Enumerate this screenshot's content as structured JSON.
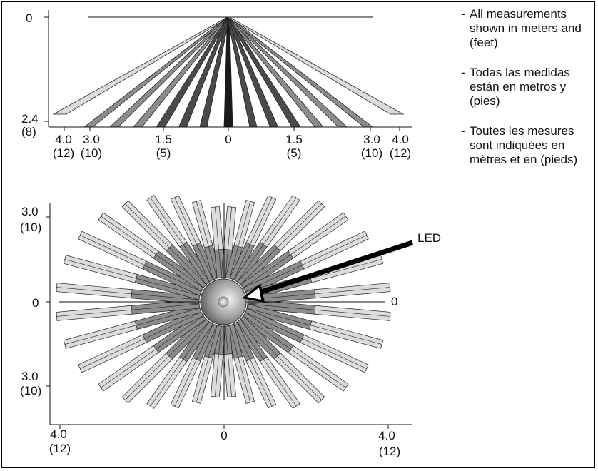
{
  "top_view": {
    "y_ticks": [
      {
        "value": "0"
      },
      {
        "value": "2.4",
        "sub": "(8)"
      }
    ],
    "x_ticks": [
      {
        "value": "4.0",
        "sub": "(12)"
      },
      {
        "value": "3.0",
        "sub": "(10)"
      },
      {
        "value": "1.5",
        "sub": "(5)"
      },
      {
        "value": "0",
        "sub": ""
      },
      {
        "value": "1.5",
        "sub": "(5)"
      },
      {
        "value": "3.0",
        "sub": "(10)"
      },
      {
        "value": "4.0",
        "sub": "(12)"
      }
    ]
  },
  "bottom_view": {
    "y_ticks": [
      {
        "value": "3.0",
        "sub": "(10)"
      },
      {
        "value": "0",
        "sub": ""
      },
      {
        "value": "3.0",
        "sub": "(10)"
      }
    ],
    "right_zero": "0",
    "x_ticks": [
      {
        "value": "4.0",
        "sub": "(12)"
      },
      {
        "value": "0",
        "sub": ""
      },
      {
        "value": "4.0",
        "sub": "(12)"
      }
    ],
    "led_label": "LED"
  },
  "notes": [
    "All measurements shown in meters and (feet)",
    "Todas las medidas están en metros y (pies)",
    "Toutes les mesures sont indiquées en mètres et en (pieds)"
  ],
  "note_dash": "-",
  "colors": {
    "light_zone": "#dcdcdc",
    "mid_zone": "#8c8c8c",
    "dark_zone": "#4a4a4a",
    "center_zone": "#1a1a1a",
    "outline": "#222222"
  }
}
